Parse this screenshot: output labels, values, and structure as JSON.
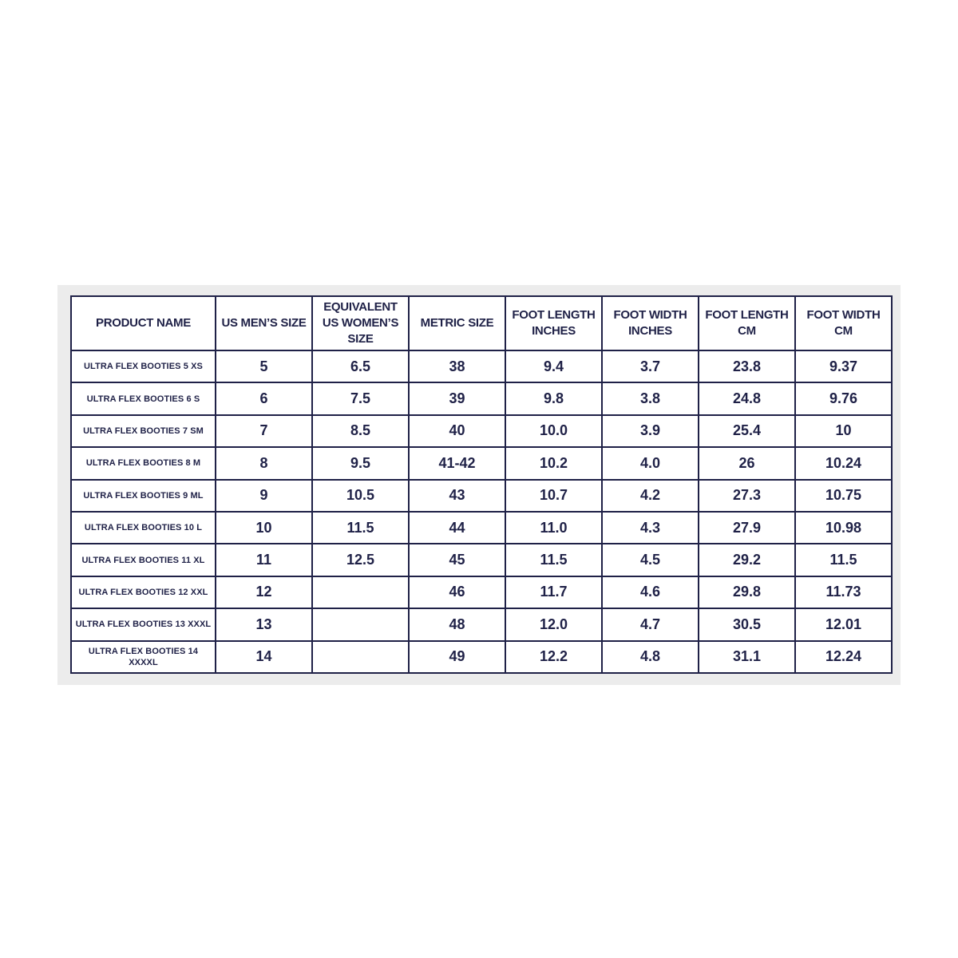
{
  "table": {
    "header": [
      "PRODUCT NAME",
      "US MEN’S SIZE",
      "EQUIVALENT US WOMEN’S SIZE",
      "METRIC SIZE",
      "FOOT LENGTH INCHES",
      "FOOT WIDTH INCHES",
      "FOOT LENGTH CM",
      "FOOT WIDTH CM"
    ],
    "rows": [
      [
        "ULTRA FLEX BOOTIES 5 XS",
        "5",
        "6.5",
        "38",
        "9.4",
        "3.7",
        "23.8",
        "9.37"
      ],
      [
        "ULTRA FLEX BOOTIES 6 S",
        "6",
        "7.5",
        "39",
        "9.8",
        "3.8",
        "24.8",
        "9.76"
      ],
      [
        "ULTRA FLEX BOOTIES 7 SM",
        "7",
        "8.5",
        "40",
        "10.0",
        "3.9",
        "25.4",
        "10"
      ],
      [
        "ULTRA FLEX BOOTIES 8 M",
        "8",
        "9.5",
        "41-42",
        "10.2",
        "4.0",
        "26",
        "10.24"
      ],
      [
        "ULTRA FLEX BOOTIES 9 ML",
        "9",
        "10.5",
        "43",
        "10.7",
        "4.2",
        "27.3",
        "10.75"
      ],
      [
        "ULTRA FLEX BOOTIES 10 L",
        "10",
        "11.5",
        "44",
        "11.0",
        "4.3",
        "27.9",
        "10.98"
      ],
      [
        "ULTRA FLEX BOOTIES 11 XL",
        "11",
        "12.5",
        "45",
        "11.5",
        "4.5",
        "29.2",
        "11.5"
      ],
      [
        "ULTRA FLEX BOOTIES 12 XXL",
        "12",
        null,
        "46",
        "11.7",
        "4.6",
        "29.8",
        "11.73"
      ],
      [
        "ULTRA FLEX BOOTIES 13 XXXL",
        "13",
        null,
        "48",
        "12.0",
        "4.7",
        "30.5",
        "12.01"
      ],
      [
        "ULTRA FLEX BOOTIES 14 XXXXL",
        "14",
        null,
        "49",
        "12.2",
        "4.8",
        "31.1",
        "12.24"
      ]
    ]
  }
}
